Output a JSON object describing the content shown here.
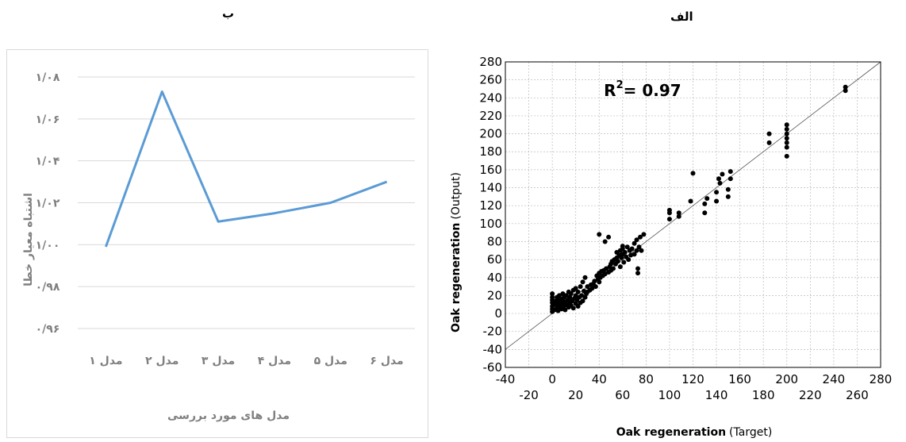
{
  "panel_labels": {
    "left": "ب",
    "right": "الف"
  },
  "chart_data": [
    {
      "type": "line",
      "title": "",
      "xlabel": "مدل های مورد بررسی",
      "ylabel": "اشتباه معیار خطا",
      "categories": [
        "مدل ۱",
        "مدل ۲",
        "مدل ۳",
        "مدل ۴",
        "مدل ۵",
        "مدل ۶"
      ],
      "series": [
        {
          "values": [
            0.999,
            1.073,
            1.011,
            1.015,
            1.02,
            1.03
          ]
        }
      ],
      "ylim": [
        0.96,
        1.08
      ],
      "yticks": [
        0.96,
        0.98,
        1.0,
        1.02,
        1.04,
        1.06,
        1.08
      ],
      "ytick_labels": [
        "۰/۹۶",
        "۰/۹۸",
        "۱/۰۰",
        "۱/۰۲",
        "۱/۰۴",
        "۱/۰۶",
        "۱/۰۸"
      ],
      "grid": true,
      "color": "#5b9bd5"
    },
    {
      "type": "scatter",
      "title": "",
      "annotation": "R²= 0.97",
      "annotation_base": "R",
      "annotation_sup": "2",
      "annotation_rest": "= 0.97",
      "xlabel_bold": "Oak regeneration",
      "xlabel_paren": "(Target)",
      "ylabel_bold": "Oak regeneration",
      "ylabel_paren": "(Output)",
      "xlim": [
        -40,
        280
      ],
      "ylim": [
        -60,
        280
      ],
      "xticks_top": [
        -40,
        0,
        40,
        80,
        120,
        160,
        200,
        240,
        280
      ],
      "xticks_bottom": [
        -20,
        20,
        60,
        100,
        140,
        180,
        220,
        260
      ],
      "yticks": [
        -60,
        -40,
        -20,
        0,
        20,
        40,
        60,
        80,
        100,
        120,
        140,
        160,
        180,
        200,
        220,
        240,
        260,
        280
      ],
      "grid": true,
      "fit_line": {
        "slope": 1,
        "intercept": 0
      },
      "points": [
        [
          0,
          2
        ],
        [
          0,
          5
        ],
        [
          0,
          8
        ],
        [
          0,
          12
        ],
        [
          0,
          15
        ],
        [
          0,
          18
        ],
        [
          0,
          22
        ],
        [
          2,
          4
        ],
        [
          2,
          10
        ],
        [
          3,
          14
        ],
        [
          4,
          6
        ],
        [
          4,
          18
        ],
        [
          5,
          3
        ],
        [
          5,
          9
        ],
        [
          5,
          12
        ],
        [
          6,
          20
        ],
        [
          6,
          15
        ],
        [
          7,
          7
        ],
        [
          8,
          5
        ],
        [
          8,
          11
        ],
        [
          8,
          16
        ],
        [
          9,
          22
        ],
        [
          10,
          8
        ],
        [
          10,
          13
        ],
        [
          10,
          18
        ],
        [
          11,
          4
        ],
        [
          12,
          10
        ],
        [
          12,
          20
        ],
        [
          13,
          15
        ],
        [
          14,
          7
        ],
        [
          14,
          24
        ],
        [
          15,
          12
        ],
        [
          15,
          18
        ],
        [
          16,
          9
        ],
        [
          16,
          22
        ],
        [
          17,
          14
        ],
        [
          18,
          6
        ],
        [
          18,
          26
        ],
        [
          19,
          17
        ],
        [
          20,
          11
        ],
        [
          20,
          20
        ],
        [
          20,
          28
        ],
        [
          21,
          15
        ],
        [
          22,
          8
        ],
        [
          22,
          24
        ],
        [
          23,
          18
        ],
        [
          24,
          12
        ],
        [
          24,
          30
        ],
        [
          25,
          20
        ],
        [
          26,
          14
        ],
        [
          26,
          35
        ],
        [
          27,
          25
        ],
        [
          28,
          18
        ],
        [
          28,
          40
        ],
        [
          29,
          22
        ],
        [
          30,
          24
        ],
        [
          30,
          30
        ],
        [
          32,
          26
        ],
        [
          33,
          32
        ],
        [
          34,
          28
        ],
        [
          35,
          33
        ],
        [
          36,
          36
        ],
        [
          37,
          30
        ],
        [
          38,
          42
        ],
        [
          39,
          38
        ],
        [
          40,
          35
        ],
        [
          40,
          45
        ],
        [
          40,
          88
        ],
        [
          41,
          40
        ],
        [
          42,
          47
        ],
        [
          43,
          42
        ],
        [
          44,
          48
        ],
        [
          45,
          44
        ],
        [
          45,
          80
        ],
        [
          46,
          50
        ],
        [
          48,
          46
        ],
        [
          48,
          85
        ],
        [
          49,
          52
        ],
        [
          50,
          48
        ],
        [
          50,
          55
        ],
        [
          51,
          58
        ],
        [
          52,
          50
        ],
        [
          53,
          60
        ],
        [
          54,
          55
        ],
        [
          55,
          62
        ],
        [
          55,
          68
        ],
        [
          56,
          58
        ],
        [
          57,
          65
        ],
        [
          58,
          70
        ],
        [
          58,
          52
        ],
        [
          59,
          62
        ],
        [
          60,
          66
        ],
        [
          60,
          72
        ],
        [
          60,
          75
        ],
        [
          61,
          57
        ],
        [
          62,
          68
        ],
        [
          63,
          63
        ],
        [
          64,
          74
        ],
        [
          65,
          60
        ],
        [
          66,
          70
        ],
        [
          67,
          65
        ],
        [
          68,
          72
        ],
        [
          70,
          66
        ],
        [
          70,
          78
        ],
        [
          72,
          70
        ],
        [
          72,
          82
        ],
        [
          73,
          45
        ],
        [
          73,
          50
        ],
        [
          74,
          74
        ],
        [
          75,
          85
        ],
        [
          76,
          70
        ],
        [
          78,
          88
        ],
        [
          100,
          105
        ],
        [
          100,
          112
        ],
        [
          100,
          115
        ],
        [
          108,
          108
        ],
        [
          108,
          112
        ],
        [
          118,
          125
        ],
        [
          120,
          156
        ],
        [
          130,
          112
        ],
        [
          130,
          122
        ],
        [
          132,
          128
        ],
        [
          140,
          125
        ],
        [
          140,
          135
        ],
        [
          142,
          150
        ],
        [
          143,
          145
        ],
        [
          145,
          155
        ],
        [
          150,
          130
        ],
        [
          150,
          138
        ],
        [
          152,
          150
        ],
        [
          152,
          158
        ],
        [
          185,
          190
        ],
        [
          185,
          200
        ],
        [
          200,
          175
        ],
        [
          200,
          185
        ],
        [
          200,
          190
        ],
        [
          200,
          195
        ],
        [
          200,
          200
        ],
        [
          200,
          205
        ],
        [
          200,
          210
        ],
        [
          250,
          248
        ],
        [
          250,
          252
        ]
      ]
    }
  ]
}
